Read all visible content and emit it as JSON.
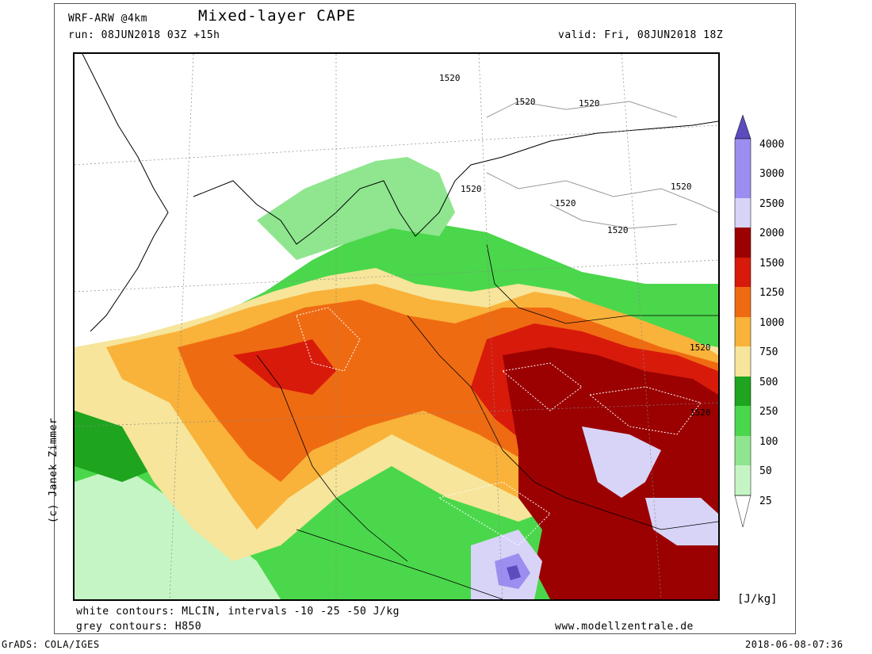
{
  "header": {
    "model": "WRF-ARW @4km",
    "title": "Mixed-layer CAPE",
    "run": "run: 08JUN2018 03Z +15h",
    "valid": "valid: Fri, 08JUN2018 18Z"
  },
  "map": {
    "contour_labels": [
      "1520",
      "1520",
      "1520",
      "1520",
      "1520",
      "1520",
      "1520",
      "1520",
      "1520",
      "1520"
    ]
  },
  "legend": {
    "unit": "[J/kg]",
    "levels": [
      "4000",
      "3000",
      "2500",
      "2000",
      "1500",
      "1250",
      "1000",
      "750",
      "500",
      "250",
      "100",
      "50",
      "25"
    ],
    "colors": [
      "#5b4dbd",
      "#9c8ef0",
      "#d7d4f8",
      "#9b0101",
      "#d81a0b",
      "#ef6b12",
      "#f9b23a",
      "#f6e59a",
      "#1ea41e",
      "#4bd74b",
      "#8fe68f",
      "#c5f5c5"
    ]
  },
  "footer": {
    "note1": "white contours: MLCIN, intervals -10 -25 -50 J/kg",
    "note2": "grey contours: H850",
    "website": "www.modellzentrale.de",
    "credit": "(c) Janek Zimmer",
    "software": "GrADS: COLA/IGES",
    "timestamp": "2018-06-08-07:36"
  }
}
